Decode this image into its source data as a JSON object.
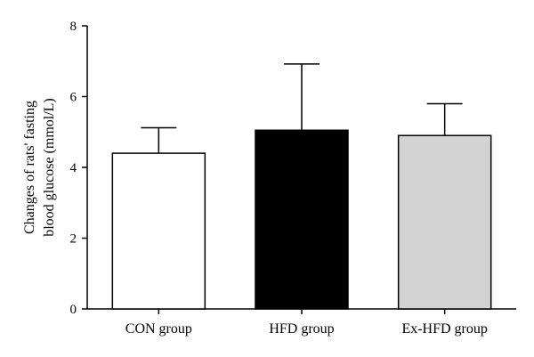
{
  "chart_data": {
    "type": "bar",
    "title": "",
    "xlabel": "",
    "ylabel_lines": [
      "Changes of rats' fasting",
      "blood glucose (mmol/L)"
    ],
    "categories": [
      "CON group",
      "HFD group",
      "Ex-HFD group"
    ],
    "values": [
      4.4,
      5.05,
      4.9
    ],
    "errors": [
      0.72,
      1.87,
      0.9
    ],
    "bar_colors": [
      "#ffffff",
      "#000000",
      "#d3d3d3"
    ],
    "ylim": [
      0,
      8
    ],
    "yticks": [
      0,
      2,
      4,
      6,
      8
    ],
    "grid": false
  }
}
